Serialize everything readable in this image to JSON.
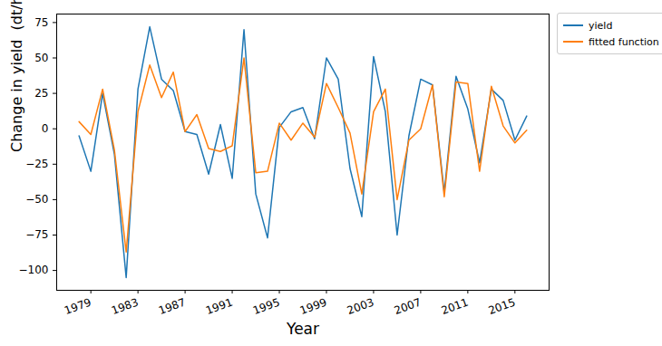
{
  "chart_data": {
    "type": "line",
    "x_label": "Year",
    "y_label": "Change in yield  (dt/ha)",
    "x": [
      1978,
      1979,
      1980,
      1981,
      1982,
      1983,
      1984,
      1985,
      1986,
      1987,
      1988,
      1989,
      1990,
      1991,
      1992,
      1993,
      1994,
      1995,
      1996,
      1997,
      1998,
      1999,
      2000,
      2001,
      2002,
      2003,
      2004,
      2005,
      2006,
      2007,
      2008,
      2009,
      2010,
      2011,
      2012,
      2013,
      2014,
      2015,
      2016
    ],
    "series": [
      {
        "name": "yield",
        "color": "#1f77b4",
        "line_style": "solid",
        "values": [
          -5,
          -30,
          25,
          -18,
          -105,
          28,
          72,
          35,
          27,
          -2,
          -4,
          -32,
          3,
          -35,
          70,
          -46,
          -77,
          1,
          12,
          15,
          -7,
          50,
          35,
          -28,
          -62,
          51,
          12,
          -75,
          -5,
          35,
          31,
          -45,
          37,
          14,
          -24,
          28,
          20,
          -8,
          9
        ]
      },
      {
        "name": "fitted function",
        "color": "#ff7f0e",
        "line_style": "solid",
        "values": [
          5,
          -4,
          28,
          -15,
          -87,
          12,
          45,
          22,
          40,
          -2,
          10,
          -14,
          -16,
          -12,
          50,
          -31,
          -30,
          4,
          -8,
          4,
          -6,
          32,
          15,
          -3,
          -46,
          12,
          28,
          -50,
          -8,
          0,
          31,
          -48,
          33,
          32,
          -30,
          30,
          2,
          -10,
          -1
        ]
      }
    ],
    "xlim": [
      1976.1,
      2017.9
    ],
    "ylim": [
      -114,
      81
    ],
    "xticks": [
      1979,
      1983,
      1987,
      1991,
      1995,
      1999,
      2003,
      2007,
      2011,
      2015
    ],
    "yticks": [
      -100,
      -75,
      -50,
      -25,
      0,
      25,
      50,
      75
    ],
    "grid": false,
    "legend": "right"
  }
}
